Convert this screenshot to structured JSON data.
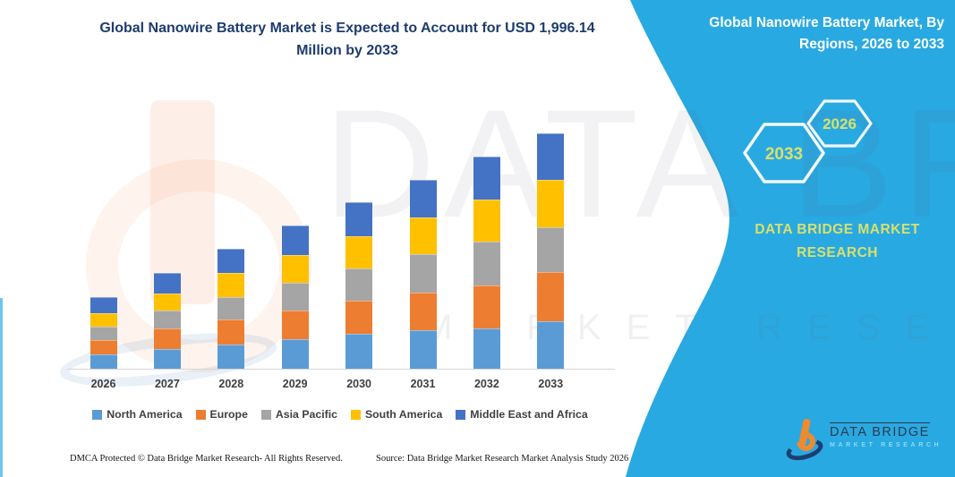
{
  "titles": {
    "main": "Global Nanowire Battery Market is Expected to Account for USD 1,996.14 Million by 2033",
    "side": "Global Nanowire Battery Market, By Regions, 2026 to 2033"
  },
  "side_panel": {
    "hexagons": [
      "2033",
      "2026"
    ],
    "brand": "DATA BRIDGE MARKET RESEARCH"
  },
  "watermark": {
    "line1": "DATA BRIDGE",
    "line2": "MARKET RESEARCH"
  },
  "logo": {
    "name": "DATA BRIDGE",
    "tagline": "MARKET RESEARCH"
  },
  "footer": {
    "left": "DMCA Protected © Data Bridge Market Research-  All Rights Reserved.",
    "source": "Source: Data Bridge Market Research  Market Analysis Study 2026"
  },
  "colors": {
    "band_blue": "#29a9e1",
    "accent_text": "#d9e06c",
    "title_navy": "#1e3c6e"
  },
  "chart_data": {
    "type": "bar",
    "stacked": true,
    "title": "Global Nanowire Battery Market is Expected to Account for USD 1,996.14 Million by 2033",
    "unit": "USD Million",
    "xlabel": "",
    "ylabel": "",
    "value_axis_visible": false,
    "grid": false,
    "legend_position": "bottom",
    "categories": [
      "2026",
      "2027",
      "2028",
      "2029",
      "2030",
      "2031",
      "2032",
      "2033"
    ],
    "series": [
      {
        "name": "North America",
        "color": "#5b9bd5",
        "values": [
          121,
          167,
          205,
          250,
          296,
          326,
          342,
          402
        ]
      },
      {
        "name": "Europe",
        "color": "#ed7d31",
        "values": [
          121,
          175,
          213,
          243,
          281,
          319,
          364,
          417
        ]
      },
      {
        "name": "Asia Pacific",
        "color": "#a5a5a5",
        "values": [
          114,
          152,
          190,
          235,
          273,
          326,
          372,
          380
        ]
      },
      {
        "name": "South America",
        "color": "#ffc000",
        "values": [
          114,
          144,
          205,
          235,
          273,
          311,
          357,
          402
        ]
      },
      {
        "name": "Middle East and Africa",
        "color": "#4472c4",
        "values": [
          137,
          175,
          205,
          250,
          288,
          319,
          364,
          395.14
        ]
      }
    ],
    "totals_estimated": [
      607,
      813,
      1018,
      1213,
      1411,
      1601,
      1799,
      1996.14
    ]
  }
}
